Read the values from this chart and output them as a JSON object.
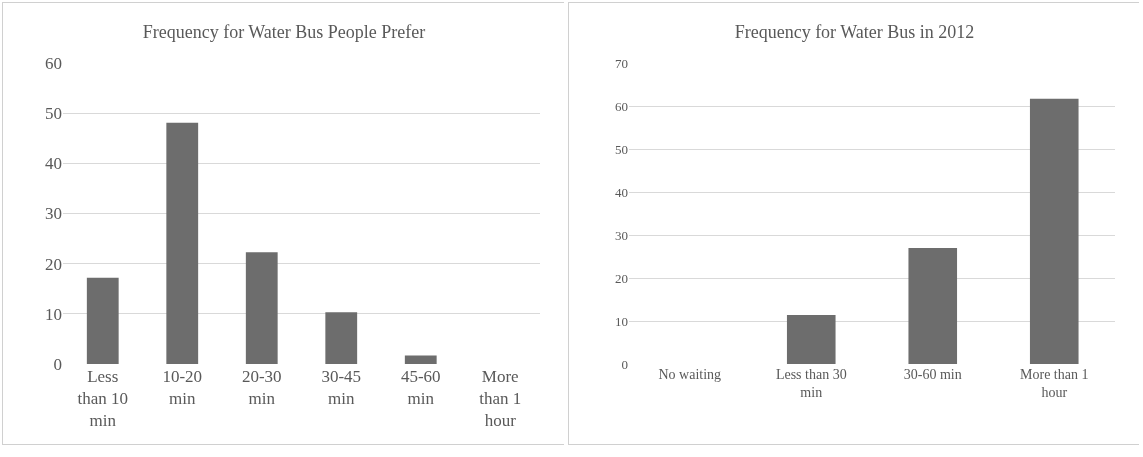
{
  "chart_data": [
    {
      "type": "bar",
      "title": "Frequency for Water Bus People Prefer",
      "categories": [
        "Less than 10 min",
        "10-20 min",
        "20-30 min",
        "30-45 min",
        "45-60 min",
        "More than 1 hour"
      ],
      "values": [
        17.2,
        48.1,
        22.3,
        10.3,
        1.7,
        0
      ],
      "color": "#6d6d6d",
      "ylim": [
        0,
        60
      ],
      "yticks": [
        0,
        10,
        20,
        30,
        40,
        50,
        60
      ],
      "grid": "y"
    },
    {
      "type": "bar",
      "title": "Frequency for Water Bus in 2012",
      "categories": [
        "No waiting",
        "Less than 30 min",
        "30-60 min",
        "More than 1 hour"
      ],
      "values": [
        0,
        11.4,
        27,
        61.7
      ],
      "color": "#6d6d6d",
      "ylim": [
        0,
        70
      ],
      "yticks": [
        0,
        10,
        20,
        30,
        40,
        50,
        60,
        70
      ],
      "grid": "y"
    }
  ]
}
